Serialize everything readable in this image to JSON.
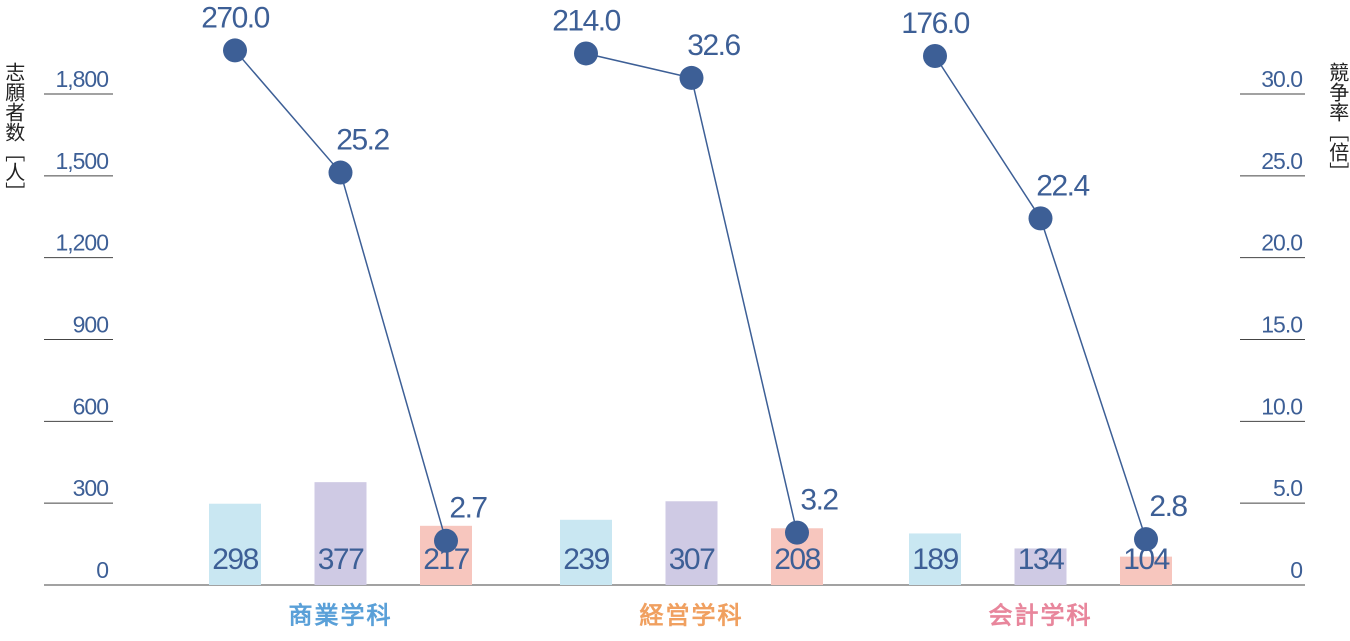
{
  "chart_data": {
    "type": "bar",
    "y_label": "志願者数［人］",
    "y2_label": "競争率［倍］",
    "categories": [
      "商業学科",
      "経営学科",
      "会計学科"
    ],
    "category_colors": [
      "#5aa0d8",
      "#f0a060",
      "#e8869c"
    ],
    "series": [
      {
        "color": "#c9e7f2",
        "values": [
          298,
          239,
          189
        ]
      },
      {
        "color": "#cfcae4",
        "values": [
          377,
          307,
          134
        ]
      },
      {
        "color": "#f7c6be",
        "values": [
          217,
          208,
          104
        ]
      }
    ],
    "lines": [
      {
        "axis": "y2",
        "color": "#3d5f96",
        "values": [
          270.0,
          25.2,
          2.7
        ],
        "value_labels": [
          "270.0",
          "25.2",
          "2.7"
        ]
      },
      {
        "axis": "y2",
        "color": "#3d5f96",
        "values": [
          214.0,
          32.6,
          3.2
        ],
        "value_labels": [
          "214.0",
          "32.6",
          "3.2"
        ]
      },
      {
        "axis": "y2",
        "color": "#3d5f96",
        "values": [
          176.0,
          22.4,
          2.8
        ],
        "value_labels": [
          "176.0",
          "22.4",
          "2.8"
        ]
      }
    ],
    "ylim": [
      0,
      1800
    ],
    "yticks": [
      0,
      300,
      600,
      900,
      {
        "value": 1200,
        "label": "1,200"
      },
      {
        "value": 1500,
        "label": "1,500"
      },
      {
        "value": 1800,
        "label": "1,800"
      }
    ],
    "y2lim": [
      0,
      30
    ],
    "y2ticks": [
      0,
      {
        "value": 5,
        "label": "5.0"
      },
      {
        "value": 10,
        "label": "10.0"
      },
      {
        "value": 15,
        "label": "15.0"
      },
      {
        "value": 20,
        "label": "20.0"
      },
      {
        "value": 25,
        "label": "25.0"
      },
      {
        "value": 30,
        "label": "30.0"
      }
    ]
  }
}
